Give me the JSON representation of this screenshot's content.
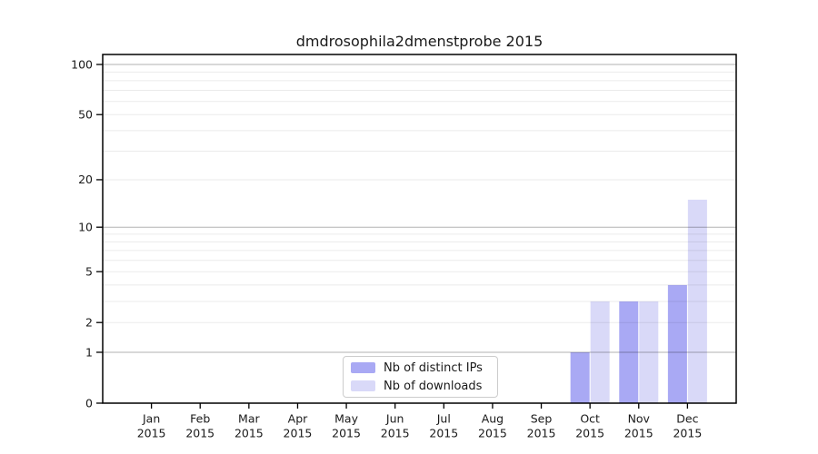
{
  "chart_data": {
    "type": "bar",
    "title": "dmdrosophila2dmenstprobe 2015",
    "year": "2015",
    "categories": [
      "Jan 2015",
      "Feb 2015",
      "Mar 2015",
      "Apr 2015",
      "May 2015",
      "Jun 2015",
      "Jul 2015",
      "Aug 2015",
      "Sep 2015",
      "Oct 2015",
      "Nov 2015",
      "Dec 2015"
    ],
    "month_labels": [
      "Jan",
      "Feb",
      "Mar",
      "Apr",
      "May",
      "Jun",
      "Jul",
      "Aug",
      "Sep",
      "Oct",
      "Nov",
      "Dec"
    ],
    "series": [
      {
        "name": "Nb of distinct IPs",
        "color": "#a9a9f4",
        "values": [
          0,
          0,
          0,
          0,
          0,
          0,
          0,
          0,
          0,
          1,
          3,
          4
        ]
      },
      {
        "name": "Nb of downloads",
        "color": "#d9d9f8",
        "values": [
          0,
          0,
          0,
          0,
          0,
          0,
          0,
          0,
          0,
          3,
          3,
          15
        ]
      }
    ],
    "yscale": "log1p",
    "ylim": [
      0,
      110
    ],
    "y_ticks": [
      0,
      1,
      2,
      5,
      10,
      20,
      50,
      100
    ],
    "y_major_gridlines": [
      1,
      10,
      100
    ],
    "y_minor_gridlines": [
      2,
      3,
      4,
      5,
      6,
      7,
      8,
      9,
      20,
      30,
      40,
      50,
      60,
      70,
      80,
      90
    ],
    "grid": "horizontal",
    "legend_position": "bottom-center"
  },
  "legend": {
    "items": [
      {
        "label": "Nb of distinct IPs",
        "color": "#a9a9f4"
      },
      {
        "label": "Nb of downloads",
        "color": "#d9d9f8"
      }
    ]
  },
  "colors": {
    "background": "#ffffff",
    "bar_distinct_ips": "#a9a9f4",
    "bar_downloads": "#d9d9f8",
    "grid_major": "#b3b3b3",
    "grid_minor": "#ebebeb",
    "axis": "#000000",
    "text": "#1a1a1a",
    "legend_border": "#cccccc"
  }
}
